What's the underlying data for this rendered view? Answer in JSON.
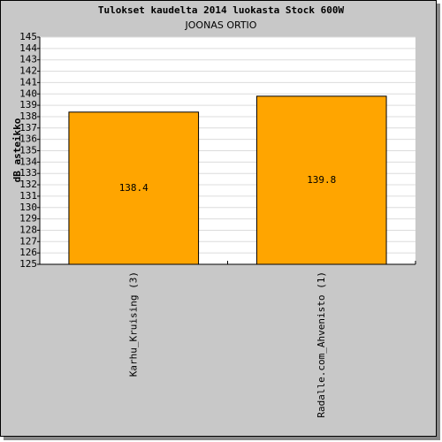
{
  "chart_data": {
    "type": "bar",
    "title": "Tulokset kaudelta 2014 luokasta Stock 600W",
    "subtitle": "JOONAS ORTIO",
    "y_label": "dB asteikko",
    "categories": [
      "Karhu_Kruising (3)",
      "Radalle.com_Ahvenisto (1)"
    ],
    "values": [
      138.4,
      139.8
    ],
    "color": "#ffa500",
    "ylim": [
      125,
      145
    ],
    "yticks": [
      125,
      126,
      127,
      128,
      129,
      130,
      131,
      132,
      133,
      134,
      135,
      136,
      137,
      138,
      139,
      140,
      141,
      142,
      143,
      144,
      145
    ],
    "grid": true
  }
}
